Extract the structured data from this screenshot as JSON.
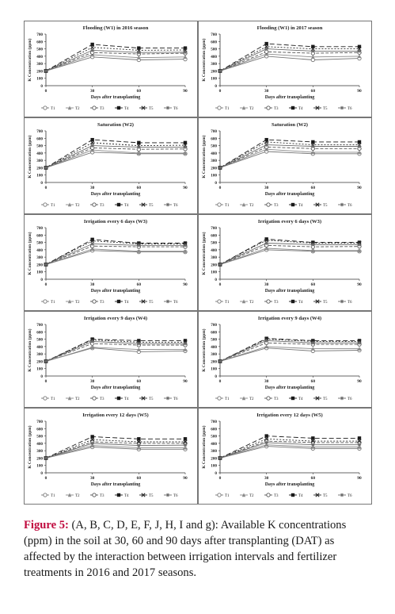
{
  "figure": {
    "caption_label": "Figure 5:",
    "caption_text": "(A, B, C, D, E, F, J, H, I and g): Available K concentrations (ppm) in the soil at 30, 60 and 90 days after transplanting (DAT) as affected by the interaction between irrigation intervals and fertilizer treatments in 2016 and 2017 seasons."
  },
  "style": {
    "series_colors": [
      "#777777",
      "#8a8a8a",
      "#555555",
      "#1a1a1a",
      "#2b2b2b",
      "#6a6a6a"
    ],
    "series_dash": [
      "",
      "",
      "4,2",
      "6,3",
      "2,2",
      ""
    ],
    "series_markers": [
      "circle",
      "triangle",
      "circle",
      "square",
      "x",
      "star"
    ],
    "axis_color": "#333333"
  },
  "chart_data": [
    {
      "type": "line",
      "title": "Flooding (W1) in 2016 season",
      "xlabel": "Days after transplanting",
      "ylabel": "K Concentration (ppm)",
      "x": [
        0,
        30,
        60,
        90
      ],
      "xticks": [
        "0",
        "30",
        "60",
        "90"
      ],
      "ylim": [
        0,
        700
      ],
      "yticks": [
        "0",
        "100",
        "200",
        "300",
        "400",
        "500",
        "600",
        "700"
      ],
      "legend": [
        "T1",
        "T2",
        "T3",
        "T4",
        "T5",
        "T6"
      ],
      "series": [
        {
          "name": "T1",
          "values": [
            200,
            390,
            350,
            360
          ]
        },
        {
          "name": "T2",
          "values": [
            200,
            420,
            380,
            390
          ]
        },
        {
          "name": "T3",
          "values": [
            200,
            450,
            430,
            440
          ]
        },
        {
          "name": "T4",
          "values": [
            200,
            560,
            510,
            510
          ]
        },
        {
          "name": "T5",
          "values": [
            200,
            520,
            480,
            485
          ]
        },
        {
          "name": "T6",
          "values": [
            200,
            480,
            450,
            455
          ]
        }
      ]
    },
    {
      "type": "line",
      "title": "Flooding (W1) in 2017 season",
      "xlabel": "Days after transplanting",
      "ylabel": "K Concentration (ppm)",
      "x": [
        0,
        30,
        60,
        90
      ],
      "xticks": [
        "0",
        "30",
        "60",
        "90"
      ],
      "ylim": [
        0,
        700
      ],
      "yticks": [
        "0",
        "100",
        "200",
        "300",
        "400",
        "500",
        "600",
        "700"
      ],
      "legend": [
        "T1",
        "T2",
        "T3",
        "T4",
        "T5",
        "T6"
      ],
      "series": [
        {
          "name": "T1",
          "values": [
            200,
            400,
            350,
            370
          ]
        },
        {
          "name": "T2",
          "values": [
            200,
            430,
            390,
            400
          ]
        },
        {
          "name": "T3",
          "values": [
            200,
            460,
            440,
            450
          ]
        },
        {
          "name": "T4",
          "values": [
            200,
            570,
            530,
            530
          ]
        },
        {
          "name": "T5",
          "values": [
            200,
            530,
            500,
            500
          ]
        },
        {
          "name": "T6",
          "values": [
            200,
            500,
            470,
            470
          ]
        }
      ]
    },
    {
      "type": "line",
      "title": "Saturation (W2)",
      "xlabel": "Days after transplanting",
      "ylabel": "K Concentration (ppm)",
      "x": [
        0,
        30,
        60,
        90
      ],
      "xticks": [
        "0",
        "30",
        "60",
        "90"
      ],
      "ylim": [
        0,
        700
      ],
      "yticks": [
        "0",
        "100",
        "200",
        "300",
        "400",
        "500",
        "600",
        "700"
      ],
      "legend": [
        "T1",
        "T2",
        "T3",
        "T4",
        "T5",
        "T6"
      ],
      "series": [
        {
          "name": "T1",
          "values": [
            200,
            410,
            390,
            390
          ]
        },
        {
          "name": "T2",
          "values": [
            200,
            440,
            400,
            400
          ]
        },
        {
          "name": "T3",
          "values": [
            200,
            470,
            450,
            455
          ]
        },
        {
          "name": "T4",
          "values": [
            200,
            580,
            540,
            540
          ]
        },
        {
          "name": "T5",
          "values": [
            200,
            540,
            500,
            505
          ]
        },
        {
          "name": "T6",
          "values": [
            200,
            500,
            480,
            480
          ]
        }
      ]
    },
    {
      "type": "line",
      "title": "Saturation (W2)",
      "xlabel": "Days after transplanting",
      "ylabel": "K Concentration (ppm)",
      "x": [
        0,
        30,
        60,
        90
      ],
      "xticks": [
        "0",
        "30",
        "60",
        "90"
      ],
      "ylim": [
        0,
        700
      ],
      "yticks": [
        "0",
        "100",
        "200",
        "300",
        "400",
        "500",
        "600",
        "700"
      ],
      "legend": [
        "T1",
        "T2",
        "T3",
        "T4",
        "T5",
        "T6"
      ],
      "series": [
        {
          "name": "T1",
          "values": [
            200,
            420,
            390,
            390
          ]
        },
        {
          "name": "T2",
          "values": [
            200,
            450,
            410,
            410
          ]
        },
        {
          "name": "T3",
          "values": [
            200,
            480,
            460,
            460
          ]
        },
        {
          "name": "T4",
          "values": [
            200,
            580,
            550,
            550
          ]
        },
        {
          "name": "T5",
          "values": [
            200,
            550,
            510,
            510
          ]
        },
        {
          "name": "T6",
          "values": [
            200,
            510,
            490,
            490
          ]
        }
      ]
    },
    {
      "type": "line",
      "title": "Irrigation every 6 days (W3)",
      "xlabel": "Days after transplanting",
      "ylabel": "K Concentration (ppm)",
      "x": [
        0,
        30,
        60,
        90
      ],
      "xticks": [
        "0",
        "30",
        "60",
        "90"
      ],
      "ylim": [
        0,
        700
      ],
      "yticks": [
        "0",
        "100",
        "200",
        "300",
        "400",
        "500",
        "600",
        "700"
      ],
      "legend": [
        "T1",
        "T2",
        "T3",
        "T4",
        "T5",
        "T6"
      ],
      "series": [
        {
          "name": "T1",
          "values": [
            200,
            390,
            370,
            370
          ]
        },
        {
          "name": "T2",
          "values": [
            200,
            410,
            380,
            380
          ]
        },
        {
          "name": "T3",
          "values": [
            200,
            450,
            440,
            440
          ]
        },
        {
          "name": "T4",
          "values": [
            200,
            540,
            490,
            490
          ]
        },
        {
          "name": "T5",
          "values": [
            200,
            520,
            480,
            480
          ]
        },
        {
          "name": "T6",
          "values": [
            200,
            480,
            460,
            460
          ]
        }
      ]
    },
    {
      "type": "line",
      "title": "Irrigation every 6 days (W3)",
      "xlabel": "Days after transplanting",
      "ylabel": "K Concentration (ppm)",
      "x": [
        0,
        30,
        60,
        90
      ],
      "xticks": [
        "0",
        "30",
        "60",
        "90"
      ],
      "ylim": [
        0,
        700
      ],
      "yticks": [
        "0",
        "100",
        "200",
        "300",
        "400",
        "500",
        "600",
        "700"
      ],
      "legend": [
        "T1",
        "T2",
        "T3",
        "T4",
        "T5",
        "T6"
      ],
      "series": [
        {
          "name": "T1",
          "values": [
            200,
            400,
            380,
            380
          ]
        },
        {
          "name": "T2",
          "values": [
            200,
            420,
            390,
            390
          ]
        },
        {
          "name": "T3",
          "values": [
            200,
            460,
            440,
            445
          ]
        },
        {
          "name": "T4",
          "values": [
            200,
            545,
            500,
            500
          ]
        },
        {
          "name": "T5",
          "values": [
            200,
            530,
            490,
            490
          ]
        },
        {
          "name": "T6",
          "values": [
            200,
            490,
            470,
            470
          ]
        }
      ]
    },
    {
      "type": "line",
      "title": "Irrigation every 9 days (W4)",
      "xlabel": "Days after transplanting",
      "ylabel": "K Concentration (ppm)",
      "x": [
        0,
        30,
        60,
        90
      ],
      "xticks": [
        "0",
        "30",
        "60",
        "90"
      ],
      "ylim": [
        0,
        700
      ],
      "yticks": [
        "0",
        "100",
        "200",
        "300",
        "400",
        "500",
        "600",
        "700"
      ],
      "legend": [
        "T1",
        "T2",
        "T3",
        "T4",
        "T5",
        "T6"
      ],
      "series": [
        {
          "name": "T1",
          "values": [
            200,
            380,
            330,
            340
          ]
        },
        {
          "name": "T2",
          "values": [
            200,
            390,
            360,
            360
          ]
        },
        {
          "name": "T3",
          "values": [
            200,
            440,
            420,
            420
          ]
        },
        {
          "name": "T4",
          "values": [
            200,
            500,
            480,
            480
          ]
        },
        {
          "name": "T5",
          "values": [
            200,
            490,
            460,
            460
          ]
        },
        {
          "name": "T6",
          "values": [
            200,
            470,
            440,
            440
          ]
        }
      ]
    },
    {
      "type": "line",
      "title": "Irrigation every 9 days (W4)",
      "xlabel": "Days after transplanting",
      "ylabel": "K Concentration (ppm)",
      "x": [
        0,
        30,
        60,
        90
      ],
      "xticks": [
        "0",
        "30",
        "60",
        "90"
      ],
      "ylim": [
        0,
        700
      ],
      "yticks": [
        "0",
        "100",
        "200",
        "300",
        "400",
        "500",
        "600",
        "700"
      ],
      "legend": [
        "T1",
        "T2",
        "T3",
        "T4",
        "T5",
        "T6"
      ],
      "series": [
        {
          "name": "T1",
          "values": [
            200,
            380,
            340,
            350
          ]
        },
        {
          "name": "T2",
          "values": [
            200,
            400,
            370,
            370
          ]
        },
        {
          "name": "T3",
          "values": [
            200,
            450,
            430,
            430
          ]
        },
        {
          "name": "T4",
          "values": [
            200,
            510,
            480,
            480
          ]
        },
        {
          "name": "T5",
          "values": [
            200,
            500,
            470,
            470
          ]
        },
        {
          "name": "T6",
          "values": [
            200,
            480,
            450,
            450
          ]
        }
      ]
    },
    {
      "type": "line",
      "title": "Irrigation every 12 days (W5)",
      "xlabel": "Days after transplanting",
      "ylabel": "K Concentration (ppm)",
      "x": [
        0,
        30,
        60,
        90
      ],
      "xticks": [
        "0",
        "30",
        "60",
        "90"
      ],
      "ylim": [
        0,
        700
      ],
      "yticks": [
        "0",
        "100",
        "200",
        "300",
        "400",
        "500",
        "600",
        "700"
      ],
      "legend": [
        "T1",
        "T2",
        "T3",
        "T4",
        "T5",
        "T6"
      ],
      "series": [
        {
          "name": "T1",
          "values": [
            200,
            350,
            320,
            320
          ]
        },
        {
          "name": "T2",
          "values": [
            200,
            370,
            340,
            340
          ]
        },
        {
          "name": "T3",
          "values": [
            200,
            420,
            400,
            400
          ]
        },
        {
          "name": "T4",
          "values": [
            200,
            490,
            460,
            460
          ]
        },
        {
          "name": "T5",
          "values": [
            200,
            450,
            420,
            420
          ]
        },
        {
          "name": "T6",
          "values": [
            200,
            400,
            370,
            375
          ]
        }
      ]
    },
    {
      "type": "line",
      "title": "Irrigation every 12 days (W5)",
      "xlabel": "Days after transplanting",
      "ylabel": "K Concentration (ppm)",
      "x": [
        0,
        30,
        60,
        90
      ],
      "xticks": [
        "0",
        "30",
        "60",
        "90"
      ],
      "ylim": [
        0,
        700
      ],
      "yticks": [
        "0",
        "100",
        "200",
        "300",
        "400",
        "500",
        "600",
        "700"
      ],
      "legend": [
        "T1",
        "T2",
        "T3",
        "T4",
        "T5",
        "T6"
      ],
      "series": [
        {
          "name": "T1",
          "values": [
            200,
            360,
            330,
            330
          ]
        },
        {
          "name": "T2",
          "values": [
            200,
            380,
            350,
            350
          ]
        },
        {
          "name": "T3",
          "values": [
            200,
            430,
            410,
            410
          ]
        },
        {
          "name": "T4",
          "values": [
            200,
            500,
            470,
            470
          ]
        },
        {
          "name": "T5",
          "values": [
            200,
            460,
            430,
            430
          ]
        },
        {
          "name": "T6",
          "values": [
            200,
            410,
            380,
            380
          ]
        }
      ]
    }
  ]
}
